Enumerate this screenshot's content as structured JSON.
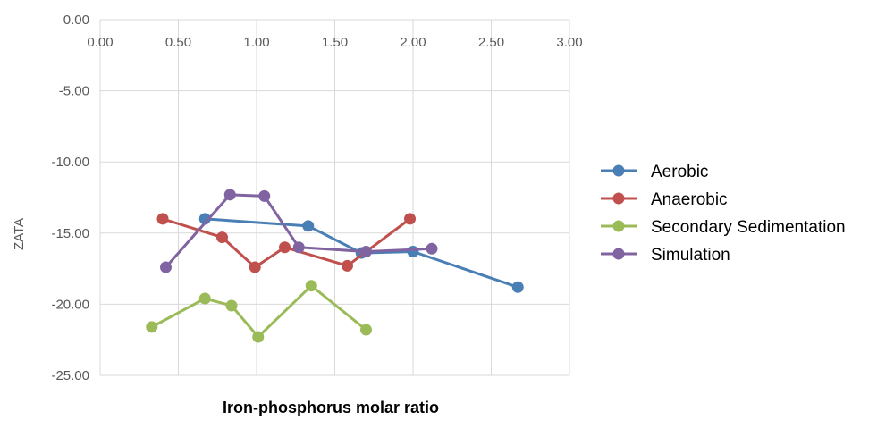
{
  "chart_data": {
    "type": "scatter",
    "title": "",
    "xlabel": "Iron-phosphorus molar ratio",
    "ylabel": "ZATA",
    "xlim": [
      0,
      3
    ],
    "ylim": [
      -25,
      0
    ],
    "x_ticks": [
      "0.00",
      "0.50",
      "1.00",
      "1.50",
      "2.00",
      "2.50",
      "3.00"
    ],
    "x_tick_values": [
      0,
      0.5,
      1,
      1.5,
      2,
      2.5,
      3
    ],
    "y_ticks": [
      "0.00",
      "-5.00",
      "-10.00",
      "-15.00",
      "-20.00",
      "-25.00"
    ],
    "y_tick_values": [
      0,
      -5,
      -10,
      -15,
      -20,
      -25
    ],
    "grid": true,
    "x_axis_position": "top",
    "legend_position": "right",
    "series": [
      {
        "name": "Aerobic",
        "color": "#4a7fb5",
        "points": [
          [
            0.67,
            -14.0
          ],
          [
            1.33,
            -14.5
          ],
          [
            1.67,
            -16.4
          ],
          [
            2.0,
            -16.3
          ],
          [
            2.67,
            -18.8
          ]
        ]
      },
      {
        "name": "Anaerobic",
        "color": "#c0504d",
        "points": [
          [
            0.4,
            -14.0
          ],
          [
            0.78,
            -15.3
          ],
          [
            0.99,
            -17.4
          ],
          [
            1.18,
            -16.0
          ],
          [
            1.58,
            -17.3
          ],
          [
            1.98,
            -14.0
          ]
        ]
      },
      {
        "name": "Secondary Sedimentation",
        "color": "#9bbb59",
        "points": [
          [
            0.33,
            -21.6
          ],
          [
            0.67,
            -19.6
          ],
          [
            0.84,
            -20.1
          ],
          [
            1.01,
            -22.3
          ],
          [
            1.35,
            -18.7
          ],
          [
            1.7,
            -21.8
          ]
        ]
      },
      {
        "name": "Simulation",
        "color": "#8064a2",
        "points": [
          [
            0.42,
            -17.4
          ],
          [
            0.83,
            -12.3
          ],
          [
            1.05,
            -12.4
          ],
          [
            1.27,
            -16.0
          ],
          [
            1.7,
            -16.3
          ],
          [
            2.12,
            -16.1
          ]
        ]
      }
    ]
  }
}
